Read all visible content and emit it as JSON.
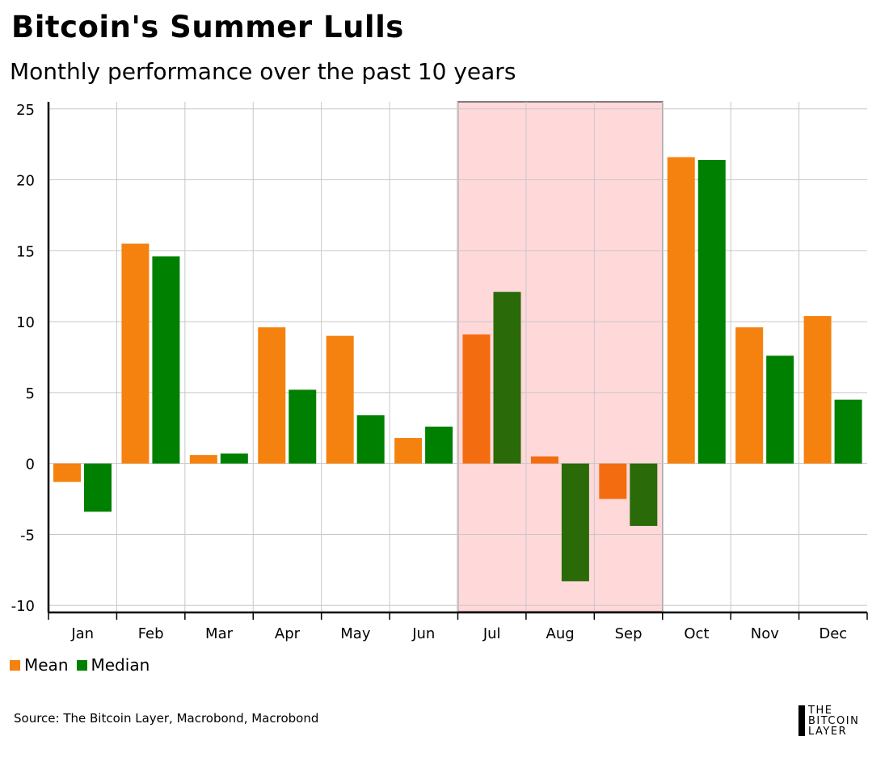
{
  "header": {
    "title": "Bitcoin's Summer Lulls",
    "subtitle": "Monthly performance over the past 10 years"
  },
  "legend": {
    "mean_label": "Mean",
    "median_label": "Median"
  },
  "footer": {
    "source": "Source: The Bitcoin Layer, Macrobond, Macrobond",
    "logo_lines": [
      "THE",
      "BITCOIN",
      "LAYER"
    ]
  },
  "colors": {
    "mean": "#f5820f",
    "median": "#008000",
    "mean_highlight": "#f46c10",
    "median_highlight": "#2a6a08",
    "highlight_band": "#ffd8da",
    "highlight_border": "#555555",
    "grid": "#c8c8c8",
    "axis": "#000000"
  },
  "chart_data": {
    "type": "bar",
    "title": "Bitcoin's Summer Lulls",
    "subtitle": "Monthly performance over the past 10 years",
    "categories": [
      "Jan",
      "Feb",
      "Mar",
      "Apr",
      "May",
      "Jun",
      "Jul",
      "Aug",
      "Sep",
      "Oct",
      "Nov",
      "Dec"
    ],
    "series": [
      {
        "name": "Mean",
        "values": [
          -1.3,
          15.5,
          0.6,
          9.6,
          9.0,
          1.8,
          9.1,
          0.5,
          -2.5,
          21.6,
          9.6,
          10.4
        ]
      },
      {
        "name": "Median",
        "values": [
          -3.4,
          14.6,
          0.7,
          5.2,
          3.4,
          2.6,
          12.1,
          -8.3,
          -4.4,
          21.4,
          7.6,
          4.5
        ]
      }
    ],
    "ylim": [
      -10.5,
      25.5
    ],
    "yticks": [
      25,
      20,
      15,
      10,
      5,
      0,
      -5,
      -10
    ],
    "ytick_labels": [
      "25",
      "20",
      "15",
      "10",
      "5",
      "0",
      "-5",
      "-10"
    ],
    "highlight": {
      "from": "Jul",
      "to": "Sep"
    },
    "legend_position": "bottom-left",
    "grid": true,
    "xlabel": "",
    "ylabel": ""
  }
}
